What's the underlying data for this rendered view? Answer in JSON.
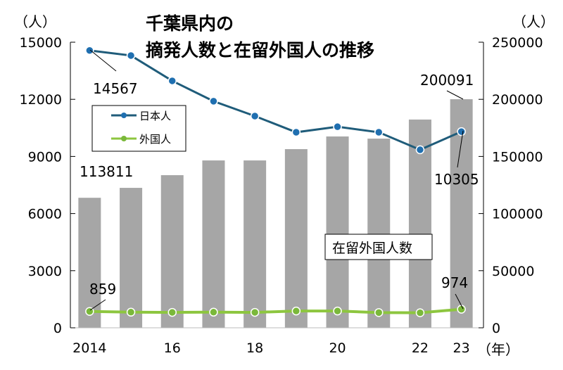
{
  "chart_data": {
    "type": "bar+line",
    "title_line1": "千葉県内の",
    "title_line2": "摘発人数と在留外国人の推移",
    "left_unit": "（人）",
    "right_unit": "（人）",
    "x_unit": "（年）",
    "categories": [
      "2014",
      "2015",
      "2016",
      "2017",
      "2018",
      "2019",
      "2020",
      "2021",
      "2022",
      "2023"
    ],
    "x_tick_labels": {
      "2014": "2014",
      "2016": "16",
      "2018": "18",
      "2020": "20",
      "2022": "22",
      "2023": "23"
    },
    "left_axis": {
      "ylim": [
        0,
        15000
      ],
      "ticks": [
        "0",
        "3000",
        "6000",
        "9000",
        "12000",
        "15000"
      ]
    },
    "right_axis": {
      "ylim": [
        0,
        250000
      ],
      "ticks": [
        "0",
        "50000",
        "100000",
        "150000",
        "200000",
        "250000"
      ]
    },
    "bars": {
      "name": "在留外国人数",
      "axis": "right",
      "color": "#a6a6a6",
      "values": [
        113811,
        122500,
        133600,
        146500,
        146500,
        156400,
        167500,
        165600,
        182300,
        200091
      ]
    },
    "series": [
      {
        "name": "日本人",
        "axis": "left",
        "color": "#1f5c7a",
        "marker": "#1f6fb0",
        "values": [
          14567,
          14300,
          12970,
          11900,
          11120,
          10270,
          10560,
          10270,
          9350,
          10305
        ]
      },
      {
        "name": "外国人",
        "axis": "left",
        "color": "#8dc63f",
        "marker": "#7ab83a",
        "values": [
          859,
          820,
          810,
          820,
          810,
          880,
          880,
          800,
          790,
          974
        ]
      }
    ],
    "annotations": {
      "jp_first": "14567",
      "jp_last": "10305",
      "fr_first": "859",
      "fr_last": "974",
      "bar_first": "113811",
      "bar_last": "200091"
    },
    "legend_placement": "top-left"
  }
}
